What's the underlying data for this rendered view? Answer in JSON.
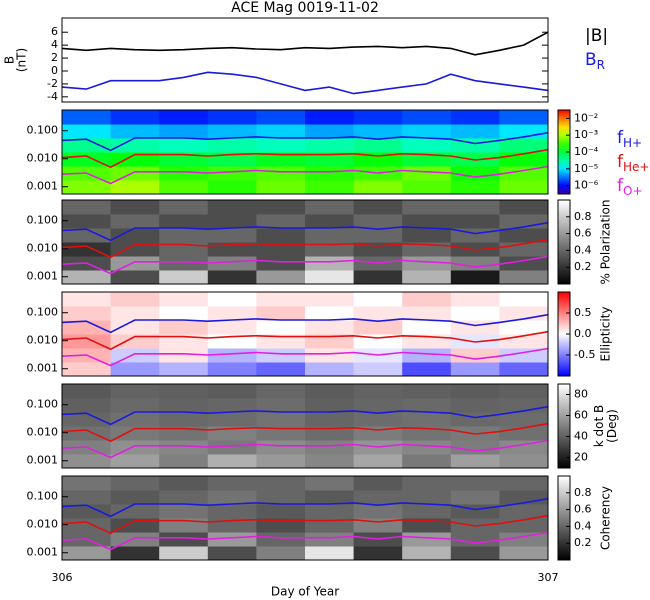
{
  "chart_data": [
    {
      "type": "line",
      "title": "ACE Mag 0019-11-02",
      "ylabel": [
        "B",
        "(nT)"
      ],
      "x": [
        306.0,
        306.05,
        306.1,
        306.15,
        306.2,
        306.25,
        306.3,
        306.35,
        306.4,
        306.45,
        306.5,
        306.55,
        306.6,
        306.65,
        306.7,
        306.75,
        306.8,
        306.85,
        306.9,
        306.95,
        307.0
      ],
      "xlim": [
        306,
        307
      ],
      "ylim": [
        -4.8,
        8.2
      ],
      "yticks": [
        -4,
        -2,
        0,
        2,
        4,
        6
      ],
      "series": [
        {
          "name": "|B|",
          "color": "#000000",
          "values": [
            3.5,
            3.2,
            3.5,
            3.3,
            3.2,
            3.3,
            3.5,
            3.6,
            3.4,
            3.3,
            3.6,
            3.5,
            3.7,
            3.8,
            3.6,
            3.8,
            3.5,
            2.5,
            3.2,
            4.0,
            6.0
          ]
        },
        {
          "name": "B",
          "sub": "R",
          "color": "#1a1adc",
          "values": [
            -2.5,
            -2.8,
            -1.5,
            -1.5,
            -1.5,
            -1.0,
            -0.2,
            -0.5,
            -1.0,
            -2.0,
            -3.0,
            -2.5,
            -3.5,
            -3.0,
            -2.5,
            -2.0,
            -0.5,
            -1.5,
            -2.0,
            -2.5,
            -3.0
          ]
        }
      ]
    },
    {
      "type": "spectrogram",
      "log": true,
      "xlim": [
        306,
        307
      ],
      "ylim": [
        0.00055,
        0.55
      ],
      "yticks": [
        {
          "value": 0.1,
          "label": "0.100"
        },
        {
          "value": 0.01,
          "label": "0.010"
        },
        0.001
      ],
      "colormap": "rainbow",
      "clim": [
        -6.5,
        -1.5
      ],
      "cticks": [
        {
          "value": -2,
          "label": "10⁻²"
        },
        {
          "value": -3,
          "label": "10⁻³"
        },
        {
          "value": -4,
          "label": "10⁻⁴"
        },
        {
          "value": -5,
          "label": "10⁻⁵"
        },
        {
          "value": -6,
          "label": "10⁻⁶"
        }
      ],
      "z": [
        [
          -3.2,
          -3.0,
          -3.4,
          -3.6,
          -3.3,
          -3.5,
          -3.2,
          -3.4,
          -3.6,
          -3.3
        ],
        [
          -3.4,
          -3.3,
          -3.6,
          -3.5,
          -3.4,
          -3.6,
          -3.5,
          -3.3,
          -3.7,
          -3.4
        ],
        [
          -3.9,
          -3.8,
          -4.0,
          -4.1,
          -3.9,
          -4.0,
          -3.8,
          -4.0,
          -4.1,
          -3.8
        ],
        [
          -4.4,
          -4.5,
          -4.6,
          -4.5,
          -4.6,
          -4.5,
          -4.4,
          -4.6,
          -4.5,
          -4.3
        ],
        [
          -5.0,
          -5.2,
          -5.3,
          -5.2,
          -5.1,
          -5.3,
          -5.2,
          -5.1,
          -5.2,
          -5.0
        ],
        [
          -5.6,
          -5.8,
          -5.9,
          -5.8,
          -5.7,
          -5.9,
          -5.8,
          -5.7,
          -5.8,
          -5.6
        ]
      ],
      "series": [
        {
          "name": "f",
          "sub": "H+",
          "color": "#1a1adc",
          "values": [
            0.045,
            0.05,
            0.02,
            0.055,
            0.055,
            0.055,
            0.05,
            0.055,
            0.06,
            0.055,
            0.055,
            0.055,
            0.06,
            0.05,
            0.06,
            0.055,
            0.05,
            0.035,
            0.045,
            0.06,
            0.085
          ]
        },
        {
          "name": "f",
          "sub": "He+",
          "color": "#e01010",
          "values": [
            0.011,
            0.0125,
            0.005,
            0.014,
            0.014,
            0.014,
            0.0125,
            0.014,
            0.015,
            0.014,
            0.014,
            0.014,
            0.015,
            0.0125,
            0.015,
            0.014,
            0.0125,
            0.009,
            0.011,
            0.015,
            0.021
          ]
        },
        {
          "name": "f",
          "sub": "O+",
          "color": "#e020e0",
          "values": [
            0.0028,
            0.0031,
            0.0013,
            0.0034,
            0.0034,
            0.0034,
            0.0031,
            0.0034,
            0.0038,
            0.0034,
            0.0034,
            0.0034,
            0.0038,
            0.0031,
            0.0038,
            0.0034,
            0.0031,
            0.0022,
            0.0028,
            0.0038,
            0.0053
          ]
        }
      ]
    },
    {
      "type": "spectrogram",
      "log": true,
      "xlim": [
        306,
        307
      ],
      "ylim": [
        0.00055,
        0.55
      ],
      "yticks": [
        {
          "value": 0.1,
          "label": "0.100"
        },
        {
          "value": 0.01,
          "label": "0.010"
        },
        0.001
      ],
      "colormap": "gray",
      "clim": [
        0,
        1
      ],
      "clabel": [
        "% Polarization"
      ],
      "cticks": [
        0.2,
        0.4,
        0.6,
        0.8
      ],
      "z": [
        [
          0.7,
          0.3,
          0.8,
          0.2,
          0.6,
          0.9,
          0.2,
          0.7,
          0.1,
          0.5
        ],
        [
          0.3,
          0.6,
          0.4,
          0.5,
          0.3,
          0.7,
          0.4,
          0.6,
          0.5,
          0.3
        ],
        [
          0.2,
          0.3,
          0.4,
          0.3,
          0.3,
          0.4,
          0.3,
          0.4,
          0.3,
          0.4
        ],
        [
          0.4,
          0.3,
          0.4,
          0.4,
          0.3,
          0.4,
          0.4,
          0.3,
          0.4,
          0.3
        ],
        [
          0.3,
          0.4,
          0.3,
          0.3,
          0.4,
          0.3,
          0.4,
          0.3,
          0.3,
          0.4
        ],
        [
          0.4,
          0.3,
          0.4,
          0.3,
          0.3,
          0.4,
          0.3,
          0.4,
          0.4,
          0.3
        ]
      ]
    },
    {
      "type": "spectrogram",
      "log": true,
      "xlim": [
        306,
        307
      ],
      "ylim": [
        0.00055,
        0.55
      ],
      "yticks": [
        {
          "value": 0.1,
          "label": "0.100"
        },
        {
          "value": 0.01,
          "label": "0.010"
        },
        0.001
      ],
      "colormap": "bwr",
      "clim": [
        -1,
        1
      ],
      "clabel": [
        "Ellipticity"
      ],
      "cticks": [
        0.5,
        {
          "value": 0,
          "label": "0.0"
        },
        -0.5
      ],
      "z": [
        [
          0.2,
          -0.4,
          -0.3,
          -0.5,
          -0.6,
          -0.3,
          -0.2,
          -0.7,
          -0.4,
          -0.6
        ],
        [
          0.3,
          -0.2,
          0.1,
          -0.3,
          -0.2,
          0.1,
          -0.1,
          -0.3,
          0.2,
          -0.2
        ],
        [
          0.4,
          0.2,
          0.1,
          0.0,
          0.1,
          0.2,
          0.0,
          0.1,
          -0.1,
          0.1
        ],
        [
          0.3,
          0.1,
          0.2,
          0.1,
          0.0,
          0.1,
          0.2,
          0.0,
          0.1,
          0.0
        ],
        [
          0.2,
          0.1,
          0.0,
          0.1,
          0.2,
          0.0,
          0.1,
          0.1,
          0.0,
          0.1
        ],
        [
          0.1,
          0.2,
          0.1,
          0.0,
          0.1,
          0.1,
          0.0,
          0.2,
          0.1,
          0.0
        ]
      ]
    },
    {
      "type": "spectrogram",
      "log": true,
      "xlim": [
        306,
        307
      ],
      "ylim": [
        0.00055,
        0.55
      ],
      "yticks": [
        {
          "value": 0.1,
          "label": "0.100"
        },
        {
          "value": 0.01,
          "label": "0.010"
        },
        0.001
      ],
      "colormap": "gray",
      "clim": [
        10,
        90
      ],
      "clabel": [
        "k dot B",
        "(Deg)"
      ],
      "cticks": [
        20,
        40,
        60,
        80
      ],
      "z": [
        [
          55,
          60,
          50,
          65,
          58,
          52,
          62,
          48,
          60,
          55
        ],
        [
          50,
          55,
          52,
          48,
          54,
          50,
          56,
          52,
          49,
          53
        ],
        [
          45,
          48,
          46,
          50,
          47,
          44,
          49,
          46,
          48,
          45
        ],
        [
          42,
          45,
          43,
          44,
          46,
          42,
          44,
          45,
          43,
          44
        ],
        [
          40,
          43,
          41,
          42,
          44,
          40,
          42,
          43,
          41,
          42
        ],
        [
          38,
          41,
          40,
          39,
          42,
          39,
          41,
          40,
          39,
          40
        ]
      ]
    },
    {
      "type": "spectrogram",
      "log": true,
      "xlim": [
        306,
        307
      ],
      "ylim": [
        0.00055,
        0.55
      ],
      "yticks": [
        {
          "value": 0.1,
          "label": "0.100"
        },
        {
          "value": 0.01,
          "label": "0.010"
        },
        0.001
      ],
      "colormap": "gray",
      "clim": [
        0,
        1
      ],
      "clabel": [
        "Coherency"
      ],
      "cticks": [
        0.2,
        0.4,
        0.6,
        0.8
      ],
      "xlabel": "Day of Year",
      "xticks": [
        306,
        307
      ],
      "z": [
        [
          0.6,
          0.2,
          0.8,
          0.3,
          0.5,
          0.9,
          0.2,
          0.7,
          0.3,
          0.6
        ],
        [
          0.4,
          0.5,
          0.3,
          0.6,
          0.4,
          0.5,
          0.3,
          0.6,
          0.4,
          0.5
        ],
        [
          0.4,
          0.3,
          0.5,
          0.4,
          0.3,
          0.4,
          0.5,
          0.3,
          0.4,
          0.4
        ],
        [
          0.35,
          0.4,
          0.45,
          0.4,
          0.35,
          0.4,
          0.45,
          0.4,
          0.35,
          0.4
        ],
        [
          0.4,
          0.35,
          0.4,
          0.45,
          0.4,
          0.35,
          0.4,
          0.4,
          0.45,
          0.35
        ],
        [
          0.45,
          0.4,
          0.35,
          0.4,
          0.4,
          0.45,
          0.35,
          0.4,
          0.4,
          0.4
        ]
      ]
    }
  ]
}
